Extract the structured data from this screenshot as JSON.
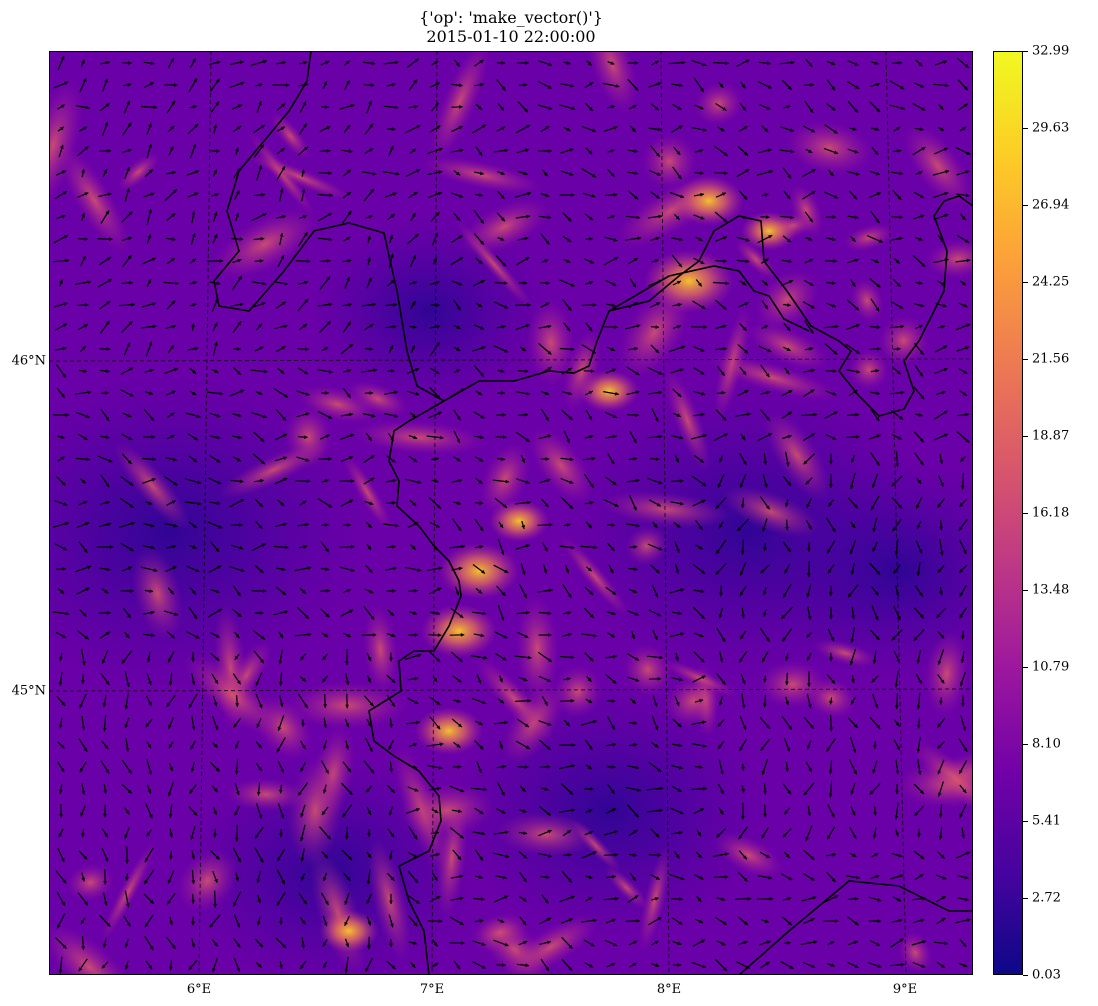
{
  "title": {
    "line1": "{'op': 'make_vector()'}",
    "line2": "2015-01-10 22:00:00"
  },
  "map": {
    "type": "wind-vector-field",
    "colormap": "plasma",
    "extent_lon": [
      5.35,
      9.3
    ],
    "extent_lat": [
      44.86,
      45.93
    ],
    "gridlines": "dashed",
    "lat_labels": [
      "46°N",
      "45°N"
    ],
    "lon_labels": [
      "6°E",
      "7°E",
      "8°E",
      "9°E"
    ],
    "vectors": "black arrows",
    "boundaries": "black country borders"
  },
  "colorbar": {
    "ticks": [
      "32.99",
      "29.63",
      "26.94",
      "24.25",
      "21.56",
      "18.87",
      "16.18",
      "13.48",
      "10.79",
      "8.10",
      "5.41",
      "2.72",
      "0.03"
    ],
    "min": 0.03,
    "max": 32.99
  }
}
